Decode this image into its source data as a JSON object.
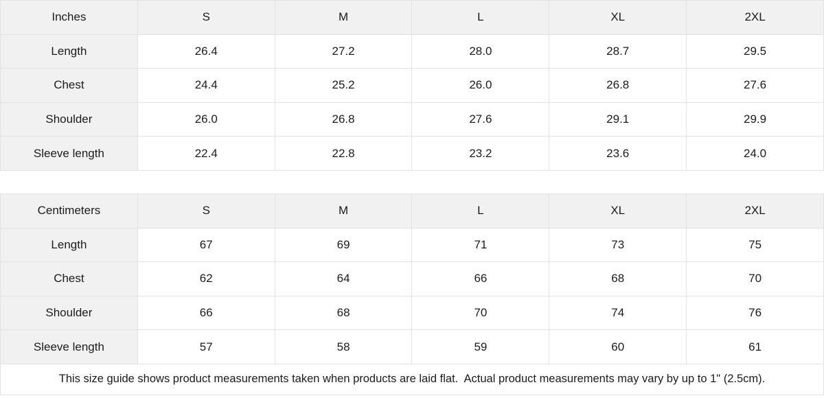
{
  "page": {
    "cell_gray": "#f1f1f1",
    "border_color": "#e2e2e2",
    "text_color": "#1b1b1b"
  },
  "tables": [
    {
      "unit_label": "Inches",
      "sizes": [
        "S",
        "M",
        "L",
        "XL",
        "2XL"
      ],
      "rows": [
        {
          "label": "Length",
          "values": [
            "26.4",
            "27.2",
            "28.0",
            "28.7",
            "29.5"
          ]
        },
        {
          "label": "Chest",
          "values": [
            "24.4",
            "25.2",
            "26.0",
            "26.8",
            "27.6"
          ]
        },
        {
          "label": "Shoulder",
          "values": [
            "26.0",
            "26.8",
            "27.6",
            "29.1",
            "29.9"
          ]
        },
        {
          "label": "Sleeve length",
          "values": [
            "22.4",
            "22.8",
            "23.2",
            "23.6",
            "24.0"
          ]
        }
      ]
    },
    {
      "unit_label": "Centimeters",
      "sizes": [
        "S",
        "M",
        "L",
        "XL",
        "2XL"
      ],
      "rows": [
        {
          "label": "Length",
          "values": [
            "67",
            "69",
            "71",
            "73",
            "75"
          ]
        },
        {
          "label": "Chest",
          "values": [
            "62",
            "64",
            "66",
            "68",
            "70"
          ]
        },
        {
          "label": "Shoulder",
          "values": [
            "66",
            "68",
            "70",
            "74",
            "76"
          ]
        },
        {
          "label": "Sleeve length",
          "values": [
            "57",
            "58",
            "59",
            "60",
            "61"
          ]
        }
      ]
    }
  ],
  "footer": {
    "note": "This size guide shows product measurements taken when products are laid flat.  Actual product measurements may vary by up to 1\" (2.5cm)."
  }
}
